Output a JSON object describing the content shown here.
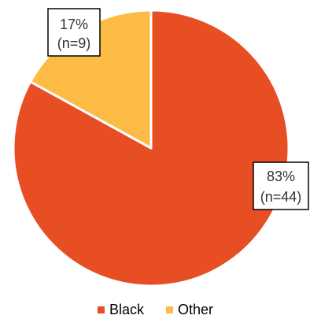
{
  "chart_data": {
    "type": "pie",
    "title": "",
    "legend_position": "bottom",
    "series": [
      {
        "name": "",
        "slices": [
          {
            "label": "Black",
            "value": 83,
            "n": 44,
            "percent_text": "83%",
            "n_text": "(n=44)",
            "color": "#E84E23"
          },
          {
            "label": "Other",
            "value": 17,
            "n": 9,
            "percent_text": "17%",
            "n_text": "(n=9)",
            "color": "#FBBB45"
          }
        ]
      }
    ]
  }
}
